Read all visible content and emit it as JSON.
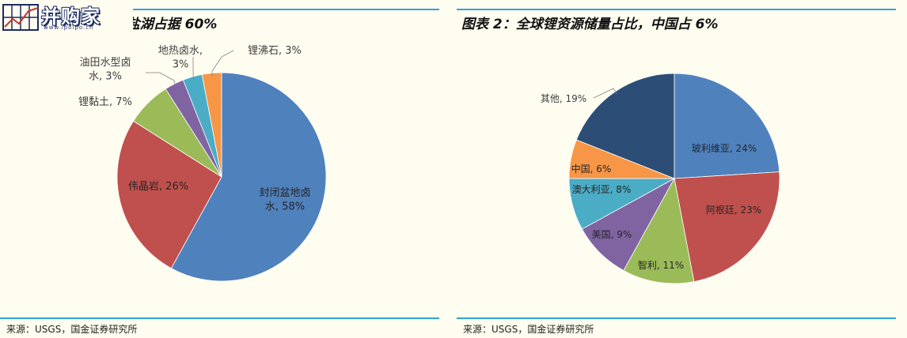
{
  "logo": {
    "text": "并购家",
    "url": "www.ipoipo.cn"
  },
  "left": {
    "title": "图表 1：全球锂资源盐湖占据 60%",
    "source": "来源：USGS，国金证券研究所"
  },
  "right": {
    "title": "图表 2：全球锂资源储量占比，中国占 6%",
    "source": "来源：USGS，国金证券研究所"
  },
  "chart_data": [
    {
      "type": "pie",
      "title": "全球锂资源盐湖占据 60%",
      "slices": [
        {
          "name": "封闭盆地卤水",
          "value": 58,
          "label_lines": [
            "封闭盆地卤",
            "水, 58%"
          ],
          "color": "#4f81bd"
        },
        {
          "name": "伟晶岩",
          "value": 26,
          "label_lines": [
            "伟晶岩, 26%"
          ],
          "color": "#c0504d"
        },
        {
          "name": "锂黏土",
          "value": 7,
          "label_lines": [
            "锂黏土, 7%"
          ],
          "color": "#9bbb59"
        },
        {
          "name": "油田水型卤水",
          "value": 3,
          "label_lines": [
            "油田水型卤",
            "水, 3%"
          ],
          "color": "#8064a2"
        },
        {
          "name": "地热卤水",
          "value": 3,
          "label_lines": [
            "地热卤水,",
            "3%"
          ],
          "color": "#4bacc6"
        },
        {
          "name": "锂沸石",
          "value": 3,
          "label_lines": [
            "锂沸石, 3%"
          ],
          "color": "#f79646"
        }
      ]
    },
    {
      "type": "pie",
      "title": "全球锂资源储量占比，中国占 6%",
      "slices": [
        {
          "name": "玻利维亚",
          "value": 24,
          "label_lines": [
            "玻利维亚, 24%"
          ],
          "color": "#4f81bd"
        },
        {
          "name": "阿根廷",
          "value": 23,
          "label_lines": [
            "阿根廷, 23%"
          ],
          "color": "#c0504d"
        },
        {
          "name": "智利",
          "value": 11,
          "label_lines": [
            "智利, 11%"
          ],
          "color": "#9bbb59"
        },
        {
          "name": "美国",
          "value": 9,
          "label_lines": [
            "美国, 9%"
          ],
          "color": "#8064a2"
        },
        {
          "name": "澳大利亚",
          "value": 8,
          "label_lines": [
            "澳大利亚, 8%"
          ],
          "color": "#4bacc6"
        },
        {
          "name": "中国",
          "value": 6,
          "label_lines": [
            "中国, 6%"
          ],
          "color": "#f79646"
        },
        {
          "name": "其他",
          "value": 19,
          "label_lines": [
            "其他, 19%"
          ],
          "color": "#2c4d75"
        }
      ]
    }
  ]
}
